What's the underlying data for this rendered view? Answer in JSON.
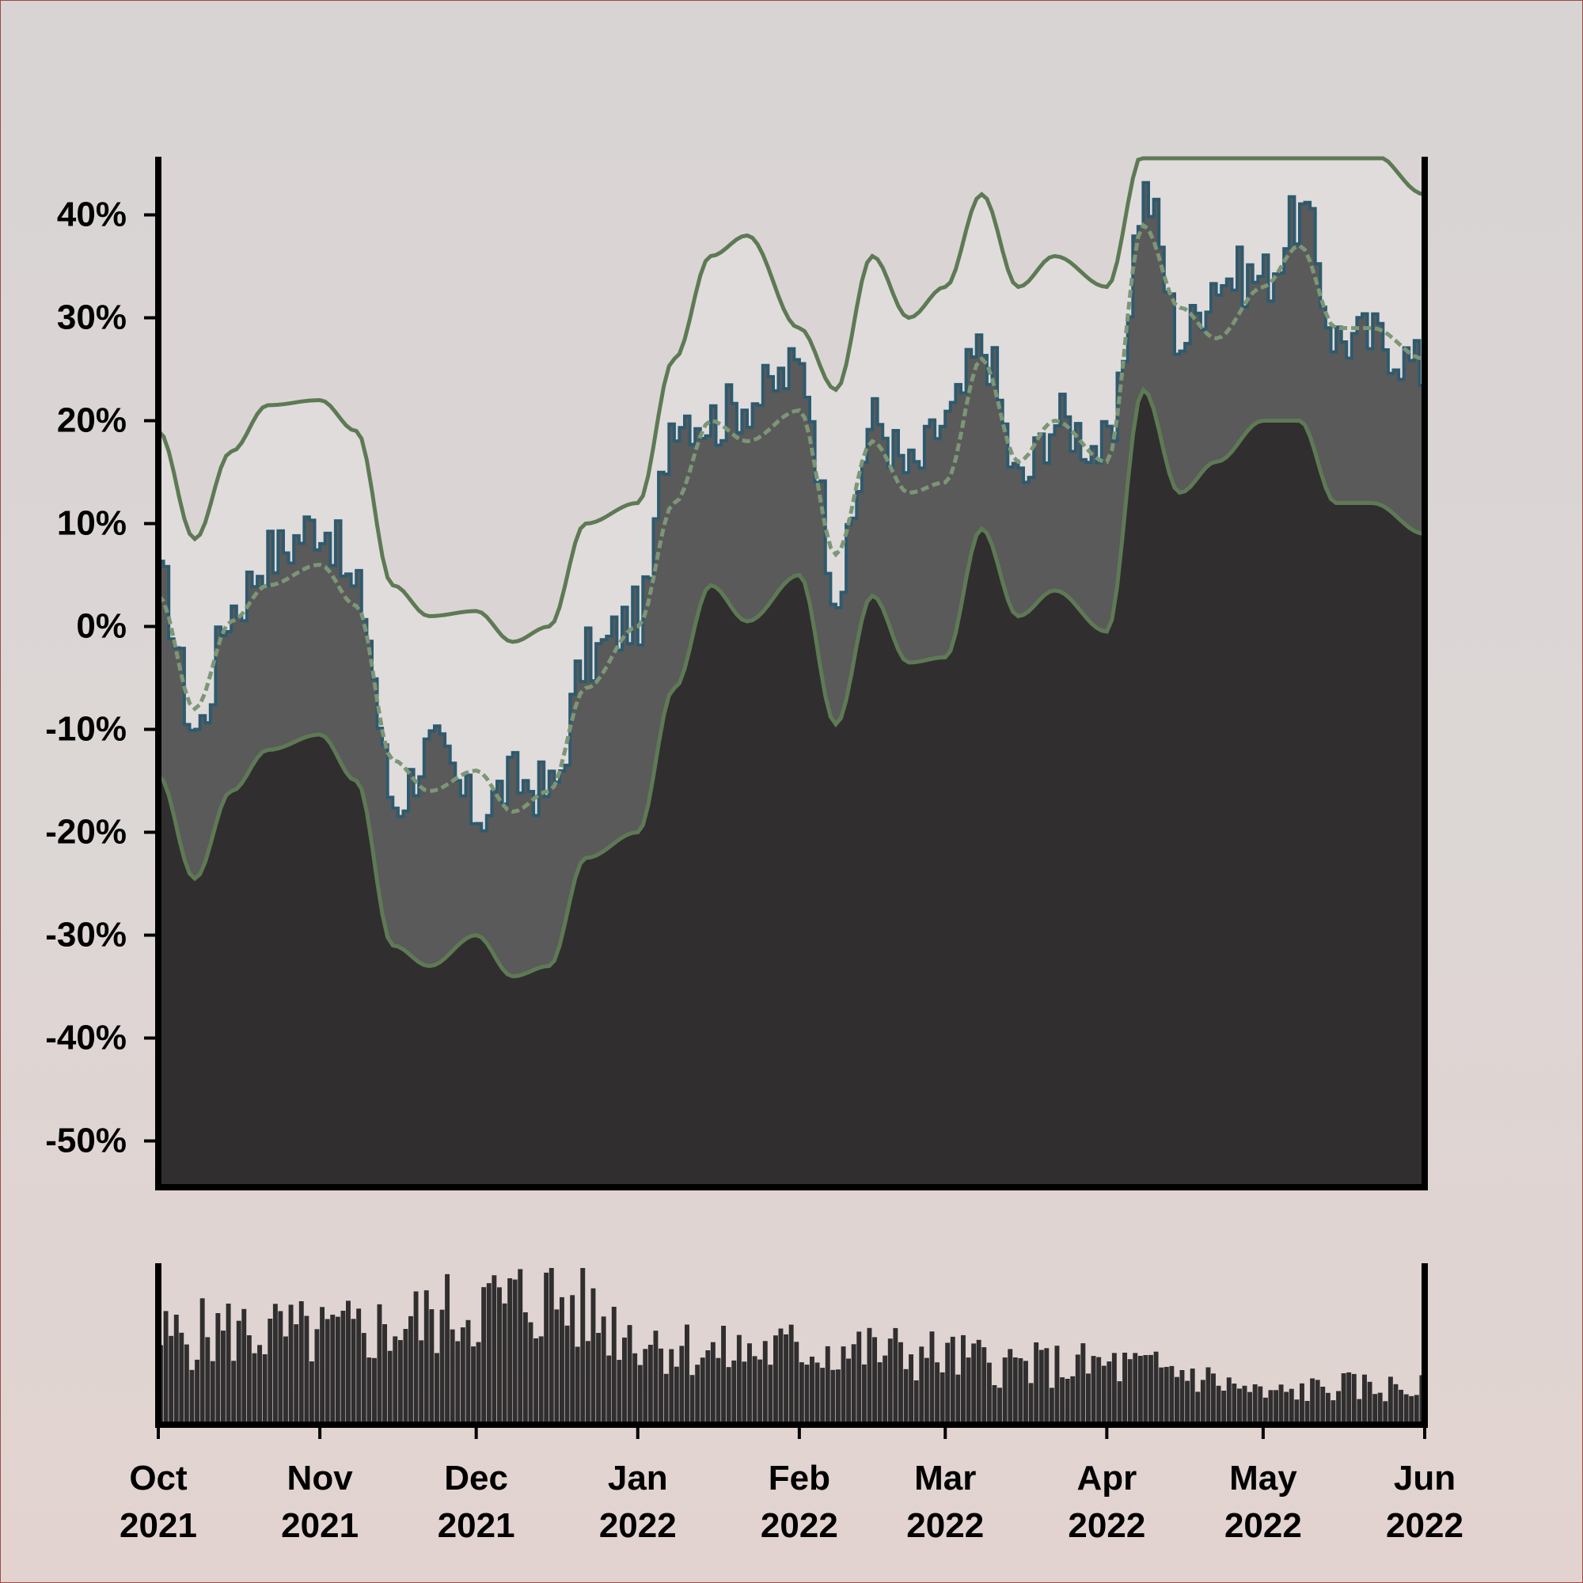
{
  "chart_data": [
    {
      "type": "area",
      "title": "",
      "xlabel": "",
      "ylabel": "",
      "y_tick_labels": [
        "40%",
        "30%",
        "20%",
        "10%",
        "0%",
        "-10%",
        "-20%",
        "-30%",
        "-40%",
        "-50%"
      ],
      "y_ticks": [
        40,
        30,
        20,
        10,
        0,
        -10,
        -20,
        -30,
        -40,
        -50
      ],
      "ylim": [
        -54.5,
        45.5
      ],
      "xlim": [
        "2021-10-01",
        "2022-06-01"
      ],
      "grid": false,
      "legend": "none",
      "colors": {
        "price_fill": "#5a5a5a",
        "price_line": "#2e5a6e",
        "lower_band_fill": "#302e2f",
        "upper_band_fill": "#e0dcdc",
        "band_line": "#5e7a55",
        "moving_average_line": "#7c9676"
      },
      "x": [
        "2021-10-01",
        "2021-10-08",
        "2021-10-15",
        "2021-10-22",
        "2021-11-01",
        "2021-11-08",
        "2021-11-15",
        "2021-11-22",
        "2021-12-01",
        "2021-12-08",
        "2021-12-15",
        "2021-12-22",
        "2022-01-01",
        "2022-01-08",
        "2022-01-15",
        "2022-01-22",
        "2022-02-01",
        "2022-02-08",
        "2022-02-15",
        "2022-02-22",
        "2022-03-01",
        "2022-03-08",
        "2022-03-15",
        "2022-03-22",
        "2022-04-01",
        "2022-04-08",
        "2022-04-15",
        "2022-04-22",
        "2022-05-01",
        "2022-05-08",
        "2022-05-15",
        "2022-05-22",
        "2022-06-01"
      ],
      "series": [
        {
          "role": "upper band",
          "values": [
            19,
            8.5,
            17,
            21.5,
            22,
            19,
            4,
            1,
            1.5,
            -1.5,
            0,
            10,
            12,
            26,
            36,
            38,
            29,
            23,
            36,
            30,
            33,
            42,
            33,
            36,
            33,
            46,
            46,
            46,
            46,
            46,
            46,
            46,
            42
          ]
        },
        {
          "role": "moving average",
          "values": [
            3,
            -8,
            0.5,
            4,
            6,
            2,
            -13,
            -16,
            -14,
            -18,
            -16,
            -6,
            0,
            12,
            20,
            18,
            21,
            7,
            18,
            13,
            14,
            26,
            16,
            20,
            16,
            39,
            31,
            28,
            33,
            37,
            29,
            29,
            26
          ]
        },
        {
          "role": "lower band",
          "values": [
            -14.5,
            -24.5,
            -16,
            -12,
            -10.5,
            -15,
            -31,
            -33,
            -30,
            -34,
            -33,
            -22.5,
            -20,
            -6,
            4,
            0.5,
            5,
            -9.5,
            3,
            -3.5,
            -3,
            9.5,
            1,
            3.5,
            -0.5,
            23,
            13,
            16,
            20,
            20,
            12,
            12,
            9
          ]
        },
        {
          "role": "price",
          "values": [
            4,
            -10,
            2,
            7,
            10,
            3,
            -17,
            -12,
            -18,
            -15,
            -16,
            -3,
            1,
            21,
            20,
            22,
            25,
            4,
            20,
            15,
            20,
            27,
            14,
            20,
            17,
            42,
            28,
            34,
            34,
            40,
            28,
            28,
            25
          ]
        }
      ]
    },
    {
      "type": "bar",
      "title": "",
      "xlabel": "",
      "ylabel": "",
      "x_tick_labels": [
        [
          "Oct",
          "2021"
        ],
        [
          "Nov",
          "2021"
        ],
        [
          "Dec",
          "2021"
        ],
        [
          "Jan",
          "2022"
        ],
        [
          "Feb",
          "2022"
        ],
        [
          "Mar",
          "2022"
        ],
        [
          "Apr",
          "2022"
        ],
        [
          "May",
          "2022"
        ],
        [
          "Jun",
          "2022"
        ]
      ],
      "x_ticks": [
        "2021-10-01",
        "2021-11-01",
        "2021-12-01",
        "2022-01-01",
        "2022-02-01",
        "2022-03-01",
        "2022-04-01",
        "2022-05-01",
        "2022-06-01"
      ],
      "ylim": [
        0,
        1
      ],
      "colors": {
        "bar": "#302e2f"
      },
      "x": [
        "2021-10-01",
        "2021-10-15",
        "2021-11-01",
        "2021-11-15",
        "2021-12-01",
        "2021-12-15",
        "2022-01-01",
        "2022-01-15",
        "2022-02-01",
        "2022-02-15",
        "2022-03-01",
        "2022-03-15",
        "2022-04-01",
        "2022-04-15",
        "2022-05-01",
        "2022-05-15",
        "2022-06-01"
      ],
      "values": [
        0.58,
        0.64,
        0.6,
        0.66,
        0.8,
        0.86,
        0.6,
        0.48,
        0.52,
        0.5,
        0.46,
        0.4,
        0.4,
        0.36,
        0.2,
        0.26,
        0.24
      ]
    }
  ]
}
